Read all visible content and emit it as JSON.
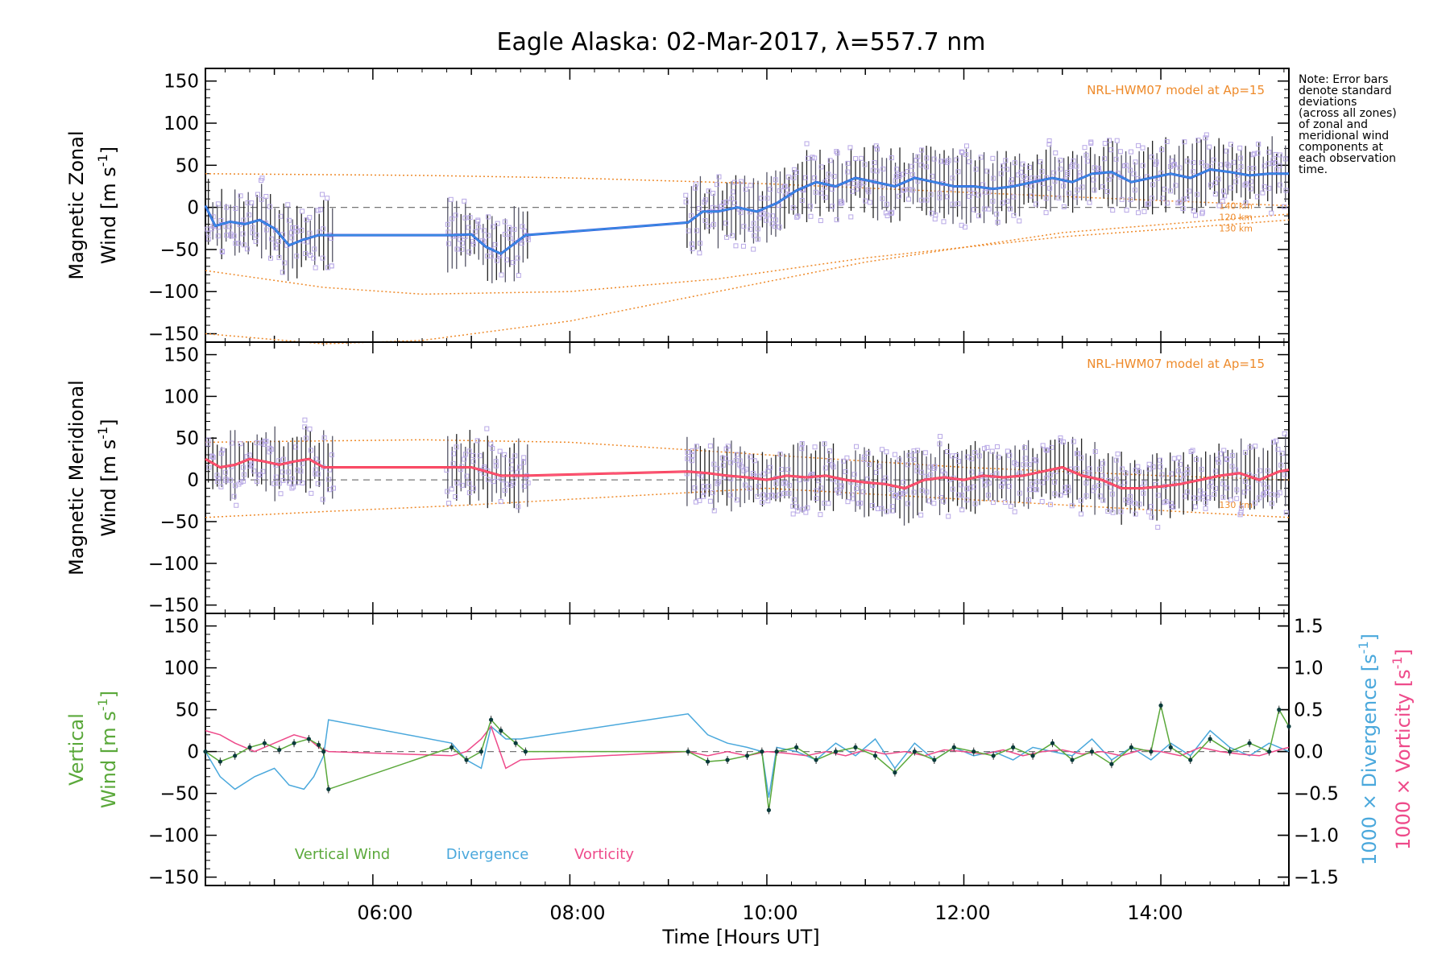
{
  "title": "Eagle Alaska: 02-Mar-2017, λ=557.7 nm",
  "note": [
    "Note: Error bars",
    "denote standard",
    "deviations",
    "(across all zones)",
    "of zonal and",
    "meridional wind",
    "components at",
    "each observation",
    "time."
  ],
  "xlabel": "Time [Hours UT]",
  "xticks": [
    "06:00",
    "08:00",
    "10:00",
    "12:00",
    "14:00"
  ],
  "colors": {
    "zonal": "#2a44e0",
    "zonal_avg": "#3d9be0",
    "meridional": "#ee2a2a",
    "meridional_avg": "#ff5a8a",
    "model": "#ee8a2a",
    "vertical": "#5aa83a",
    "divergence": "#4aa8dc",
    "vorticity": "#ee4a8a",
    "scatter": "#b8a8e6"
  },
  "chart_data": [
    {
      "type": "line",
      "name": "zonal",
      "ylabel_lines": [
        "Magnetic Zonal",
        "Wind [m s^-1]"
      ],
      "ylim": [
        -160,
        165
      ],
      "yticks": [
        "150",
        "100",
        "50",
        "0",
        "−50",
        "−100",
        "−150"
      ],
      "model_label": "NRL-HWM07 model at Ap=15",
      "model_levels": [
        "140 km",
        "120 km",
        "130 km"
      ],
      "xlim": [
        4.3,
        15.3
      ],
      "series": [
        {
          "x": [
            4.3,
            4.4,
            4.55,
            4.7,
            4.85,
            5.0,
            5.15,
            5.3,
            5.45,
            5.55,
            6.8,
            7.0,
            7.15,
            7.3,
            7.55,
            9.2,
            9.35,
            9.5,
            9.7,
            9.9,
            10.1,
            10.3,
            10.5,
            10.7,
            10.9,
            11.1,
            11.3,
            11.5,
            11.7,
            11.9,
            12.1,
            12.3,
            12.5,
            12.7,
            12.9,
            13.1,
            13.3,
            13.5,
            13.7,
            13.9,
            14.1,
            14.3,
            14.5,
            14.7,
            14.9,
            15.1,
            15.3
          ],
          "y": [
            2,
            -22,
            -17,
            -20,
            -15,
            -25,
            -45,
            -38,
            -33,
            -33,
            -33,
            -32,
            -47,
            -55,
            -33,
            -18,
            -5,
            -5,
            0,
            -5,
            5,
            20,
            30,
            25,
            35,
            30,
            25,
            35,
            30,
            25,
            25,
            22,
            25,
            30,
            35,
            30,
            40,
            42,
            30,
            35,
            40,
            35,
            45,
            42,
            38,
            40,
            40
          ]
        }
      ],
      "model_curves": [
        {
          "x": [
            4.3,
            6.5,
            8.0,
            10.0,
            12.0,
            14.0,
            15.3
          ],
          "y": [
            40,
            38,
            35,
            28,
            18,
            8,
            2
          ]
        },
        {
          "x": [
            4.3,
            5.5,
            6.5,
            8.0,
            9.5,
            11.0,
            13.0,
            15.3
          ],
          "y": [
            -75,
            -95,
            -103,
            -100,
            -85,
            -60,
            -35,
            -15
          ]
        },
        {
          "x": [
            4.3,
            5.5,
            6.5,
            8.0,
            9.5,
            11.0,
            13.0,
            15.3
          ],
          "y": [
            -150,
            -162,
            -158,
            -135,
            -100,
            -65,
            -30,
            -8
          ]
        }
      ]
    },
    {
      "type": "line",
      "name": "meridional",
      "ylabel_lines": [
        "Magnetic Meridional",
        "Wind [m s^-1]"
      ],
      "ylim": [
        -160,
        165
      ],
      "yticks": [
        "150",
        "100",
        "50",
        "0",
        "−50",
        "−100",
        "−150"
      ],
      "model_label": "NRL-HWM07 model at Ap=15",
      "model_levels": [
        "130 km"
      ],
      "xlim": [
        4.3,
        15.3
      ],
      "series": [
        {
          "x": [
            4.3,
            4.45,
            4.6,
            4.75,
            4.9,
            5.05,
            5.2,
            5.35,
            5.5,
            5.55,
            6.8,
            7.0,
            7.15,
            7.3,
            7.55,
            9.2,
            9.4,
            9.6,
            9.8,
            10.0,
            10.2,
            10.4,
            10.6,
            10.8,
            11.0,
            11.2,
            11.4,
            11.6,
            11.8,
            12.0,
            12.2,
            12.4,
            12.6,
            12.8,
            13.0,
            13.2,
            13.4,
            13.6,
            13.8,
            14.0,
            14.2,
            14.4,
            14.6,
            14.8,
            15.0,
            15.2,
            15.3
          ],
          "y": [
            25,
            15,
            18,
            25,
            22,
            18,
            22,
            25,
            15,
            15,
            15,
            15,
            10,
            5,
            5,
            10,
            8,
            5,
            3,
            0,
            5,
            3,
            5,
            0,
            -3,
            -5,
            -10,
            0,
            3,
            0,
            5,
            3,
            5,
            10,
            15,
            5,
            0,
            -10,
            -10,
            -8,
            -5,
            0,
            5,
            8,
            0,
            10,
            12
          ]
        }
      ],
      "model_curves": [
        {
          "x": [
            4.3,
            6.5,
            8.0,
            10.0,
            12.0,
            14.0,
            15.3
          ],
          "y": [
            45,
            48,
            45,
            30,
            15,
            5,
            0
          ]
        },
        {
          "x": [
            4.3,
            5.5,
            7.0,
            8.5,
            10.0,
            11.5,
            13.0,
            14.5,
            15.3
          ],
          "y": [
            -45,
            -38,
            -30,
            -20,
            -10,
            -20,
            -30,
            -40,
            -45
          ]
        }
      ]
    },
    {
      "type": "line",
      "name": "vertical",
      "ylabel_lines": [
        "Vertical",
        "Wind [m s^-1]"
      ],
      "ylim": [
        -160,
        165
      ],
      "yticks": [
        "150",
        "100",
        "50",
        "0",
        "−50",
        "−100",
        "−150"
      ],
      "y2_ticks": [
        "1.5",
        "1.0",
        "0.5",
        "0.0",
        "−0.5",
        "−1.0",
        "−1.5"
      ],
      "y2_label_div": "1000 × Divergence [s^-1]",
      "y2_label_vort": "1000 × Vorticity [s^-1]",
      "legend": [
        "Vertical Wind",
        "Divergence",
        "Vorticity"
      ],
      "xlim": [
        4.3,
        15.3
      ],
      "series": [
        {
          "name": "Vertical Wind",
          "x": [
            4.3,
            4.45,
            4.6,
            4.75,
            4.9,
            5.05,
            5.2,
            5.35,
            5.45,
            5.5,
            5.55,
            6.8,
            6.95,
            7.1,
            7.2,
            7.3,
            7.45,
            7.55,
            9.2,
            9.4,
            9.6,
            9.8,
            9.95,
            10.02,
            10.1,
            10.3,
            10.5,
            10.7,
            10.9,
            11.1,
            11.3,
            11.5,
            11.7,
            11.9,
            12.1,
            12.3,
            12.5,
            12.7,
            12.9,
            13.1,
            13.3,
            13.5,
            13.7,
            13.9,
            14.0,
            14.1,
            14.3,
            14.5,
            14.7,
            14.9,
            15.1,
            15.2,
            15.3
          ],
          "y": [
            0,
            -12,
            -5,
            5,
            10,
            2,
            10,
            15,
            8,
            0,
            -45,
            5,
            -10,
            0,
            38,
            25,
            10,
            0,
            0,
            -12,
            -10,
            -5,
            0,
            -70,
            0,
            5,
            -10,
            0,
            5,
            -5,
            -25,
            0,
            -10,
            5,
            0,
            -5,
            5,
            -5,
            10,
            -10,
            0,
            -15,
            5,
            0,
            55,
            5,
            -10,
            15,
            0,
            10,
            0,
            50,
            30
          ]
        },
        {
          "name": "Divergence",
          "x": [
            4.3,
            4.45,
            4.6,
            4.8,
            5.0,
            5.15,
            5.3,
            5.4,
            5.5,
            5.55,
            6.8,
            6.95,
            7.1,
            7.2,
            7.35,
            7.5,
            9.2,
            9.4,
            9.6,
            9.8,
            9.95,
            10.02,
            10.1,
            10.3,
            10.5,
            10.7,
            10.9,
            11.1,
            11.3,
            11.5,
            11.7,
            11.9,
            12.1,
            12.3,
            12.5,
            12.7,
            12.9,
            13.1,
            13.3,
            13.5,
            13.7,
            13.9,
            14.1,
            14.3,
            14.5,
            14.7,
            14.9,
            15.1,
            15.3
          ],
          "y": [
            0,
            -0.3,
            -0.45,
            -0.3,
            -0.2,
            -0.4,
            -0.45,
            -0.3,
            -0.05,
            0.38,
            0.1,
            -0.1,
            -0.2,
            0.3,
            0.15,
            0.15,
            0.45,
            0.2,
            0.1,
            0.05,
            0.0,
            -0.55,
            0.05,
            0.0,
            -0.1,
            0.1,
            -0.05,
            0.15,
            -0.2,
            0.1,
            -0.1,
            0.05,
            -0.05,
            0.0,
            -0.1,
            0.05,
            0.0,
            -0.05,
            0.15,
            -0.1,
            0.05,
            -0.1,
            0.1,
            -0.05,
            0.25,
            0.05,
            -0.05,
            0.1,
            0.0
          ]
        },
        {
          "name": "Vorticity",
          "x": [
            4.3,
            4.45,
            4.6,
            4.8,
            5.0,
            5.2,
            5.35,
            5.45,
            5.55,
            6.8,
            6.95,
            7.1,
            7.2,
            7.35,
            7.5,
            9.2,
            9.4,
            9.6,
            9.8,
            10.0,
            10.2,
            10.4,
            10.6,
            10.8,
            11.0,
            11.2,
            11.4,
            11.6,
            11.8,
            12.0,
            12.2,
            12.4,
            12.6,
            12.8,
            13.0,
            13.2,
            13.4,
            13.6,
            13.8,
            14.0,
            14.2,
            14.4,
            14.6,
            14.8,
            15.0,
            15.2,
            15.3
          ],
          "y": [
            0.25,
            0.2,
            0.1,
            0.0,
            0.1,
            0.2,
            0.15,
            0.05,
            0.0,
            -0.05,
            0.0,
            0.15,
            0.3,
            -0.2,
            -0.1,
            0.0,
            -0.05,
            0.0,
            -0.05,
            0.0,
            -0.02,
            -0.05,
            0.0,
            -0.05,
            0.02,
            -0.03,
            0.0,
            -0.05,
            0.02,
            0.0,
            -0.03,
            0.02,
            -0.05,
            0.0,
            0.02,
            -0.03,
            0.0,
            -0.05,
            0.02,
            0.0,
            -0.05,
            0.05,
            0.0,
            -0.03,
            -0.05,
            0.02,
            0.05
          ]
        }
      ]
    }
  ]
}
